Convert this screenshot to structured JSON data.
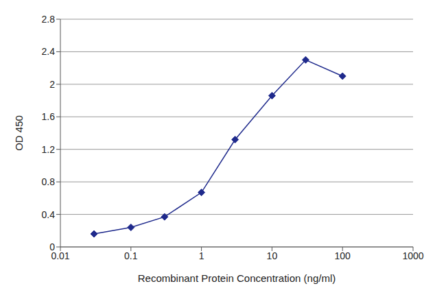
{
  "chart_data": {
    "type": "line",
    "x_label": "Recombinant Protein Concentration (ng/ml)",
    "y_label": "OD 450",
    "x": [
      0.03,
      0.1,
      0.3,
      1,
      3,
      10,
      30,
      100
    ],
    "values": [
      0.16,
      0.24,
      0.37,
      0.67,
      1.32,
      1.86,
      2.3,
      2.1
    ],
    "color": "#1f2a8c",
    "marker": "diamond",
    "log": "x",
    "xlim": [
      0.01,
      1000
    ],
    "xticks": [
      0.01,
      0.1,
      1,
      10,
      100,
      1000
    ],
    "ylim": [
      0,
      2.8
    ],
    "yticks": [
      0,
      0.4,
      0.8,
      1.2,
      1.6,
      2,
      2.4,
      2.8
    ],
    "grid": true
  }
}
